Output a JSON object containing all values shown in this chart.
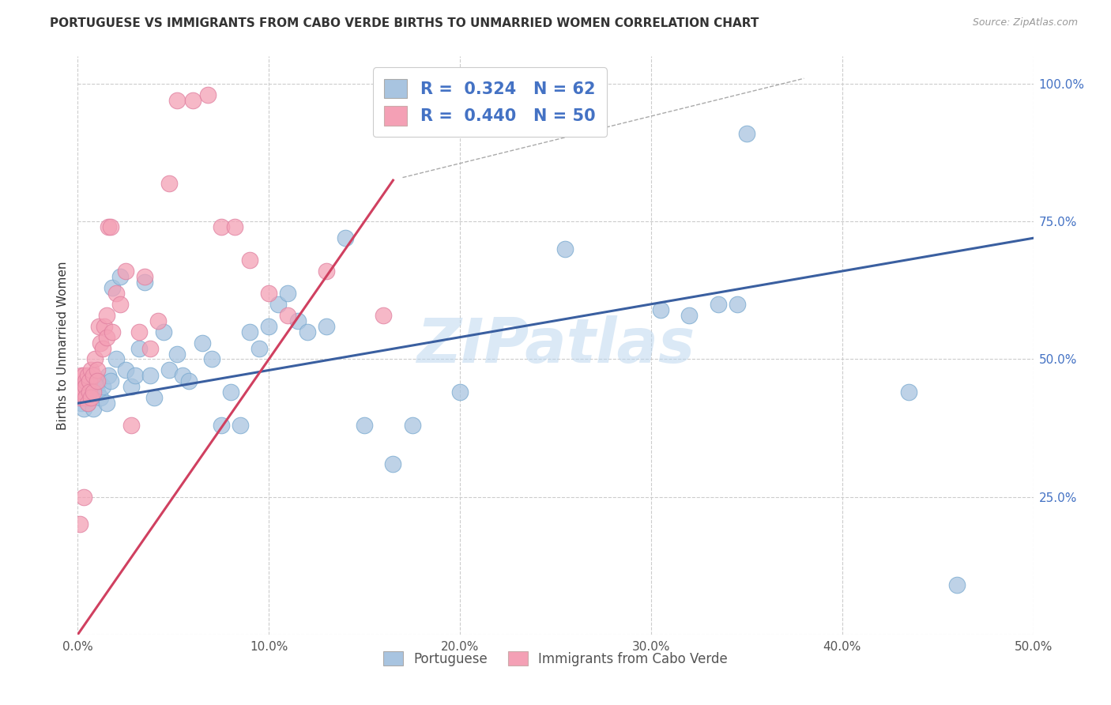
{
  "title": "PORTUGUESE VS IMMIGRANTS FROM CABO VERDE BIRTHS TO UNMARRIED WOMEN CORRELATION CHART",
  "source": "Source: ZipAtlas.com",
  "ylabel": "Births to Unmarried Women",
  "legend_label1": "R =  0.324   N = 62",
  "legend_label2": "R =  0.440   N = 50",
  "legend_name1": "Portuguese",
  "legend_name2": "Immigrants from Cabo Verde",
  "xlim": [
    0.0,
    0.5
  ],
  "ylim": [
    0.0,
    1.05
  ],
  "xtick_labels": [
    "0.0%",
    "10.0%",
    "20.0%",
    "30.0%",
    "40.0%",
    "50.0%"
  ],
  "xtick_vals": [
    0.0,
    0.1,
    0.2,
    0.3,
    0.4,
    0.5
  ],
  "ytick_labels": [
    "25.0%",
    "50.0%",
    "75.0%",
    "100.0%"
  ],
  "ytick_vals": [
    0.25,
    0.5,
    0.75,
    1.0
  ],
  "blue_color": "#a8c4e0",
  "pink_color": "#f4a0b5",
  "blue_line_color": "#3a5fa0",
  "pink_line_color": "#d04060",
  "watermark": "ZIPatlas",
  "blue_intercept": 0.42,
  "blue_slope": 0.6,
  "pink_intercept": 0.0,
  "pink_slope": 5.0,
  "pink_line_xmax": 0.165,
  "blue_x": [
    0.001,
    0.002,
    0.002,
    0.003,
    0.003,
    0.004,
    0.004,
    0.005,
    0.005,
    0.006,
    0.006,
    0.007,
    0.008,
    0.009,
    0.01,
    0.011,
    0.012,
    0.013,
    0.015,
    0.016,
    0.017,
    0.018,
    0.02,
    0.022,
    0.025,
    0.028,
    0.03,
    0.032,
    0.035,
    0.038,
    0.04,
    0.045,
    0.048,
    0.052,
    0.055,
    0.058,
    0.065,
    0.07,
    0.075,
    0.08,
    0.085,
    0.09,
    0.095,
    0.1,
    0.105,
    0.11,
    0.115,
    0.12,
    0.13,
    0.14,
    0.15,
    0.165,
    0.175,
    0.2,
    0.255,
    0.305,
    0.32,
    0.335,
    0.345,
    0.35,
    0.435,
    0.46
  ],
  "blue_y": [
    0.44,
    0.43,
    0.42,
    0.44,
    0.41,
    0.43,
    0.45,
    0.42,
    0.44,
    0.45,
    0.43,
    0.44,
    0.41,
    0.45,
    0.44,
    0.46,
    0.43,
    0.45,
    0.42,
    0.47,
    0.46,
    0.63,
    0.5,
    0.65,
    0.48,
    0.45,
    0.47,
    0.52,
    0.64,
    0.47,
    0.43,
    0.55,
    0.48,
    0.51,
    0.47,
    0.46,
    0.53,
    0.5,
    0.38,
    0.44,
    0.38,
    0.55,
    0.52,
    0.56,
    0.6,
    0.62,
    0.57,
    0.55,
    0.56,
    0.72,
    0.38,
    0.31,
    0.38,
    0.44,
    0.7,
    0.59,
    0.58,
    0.6,
    0.6,
    0.91,
    0.44,
    0.09
  ],
  "pink_x": [
    0.001,
    0.001,
    0.001,
    0.002,
    0.002,
    0.003,
    0.003,
    0.003,
    0.004,
    0.004,
    0.004,
    0.005,
    0.005,
    0.006,
    0.006,
    0.007,
    0.007,
    0.008,
    0.008,
    0.009,
    0.01,
    0.01,
    0.011,
    0.012,
    0.013,
    0.014,
    0.015,
    0.015,
    0.016,
    0.017,
    0.018,
    0.02,
    0.022,
    0.025,
    0.028,
    0.032,
    0.035,
    0.038,
    0.042,
    0.048,
    0.052,
    0.06,
    0.068,
    0.075,
    0.082,
    0.09,
    0.1,
    0.11,
    0.13,
    0.16
  ],
  "pink_y": [
    0.44,
    0.43,
    0.2,
    0.47,
    0.45,
    0.47,
    0.44,
    0.25,
    0.46,
    0.45,
    0.43,
    0.47,
    0.42,
    0.46,
    0.44,
    0.48,
    0.43,
    0.47,
    0.44,
    0.5,
    0.48,
    0.46,
    0.56,
    0.53,
    0.52,
    0.56,
    0.58,
    0.54,
    0.74,
    0.74,
    0.55,
    0.62,
    0.6,
    0.66,
    0.38,
    0.55,
    0.65,
    0.52,
    0.57,
    0.82,
    0.97,
    0.97,
    0.98,
    0.74,
    0.74,
    0.68,
    0.62,
    0.58,
    0.66,
    0.58
  ]
}
